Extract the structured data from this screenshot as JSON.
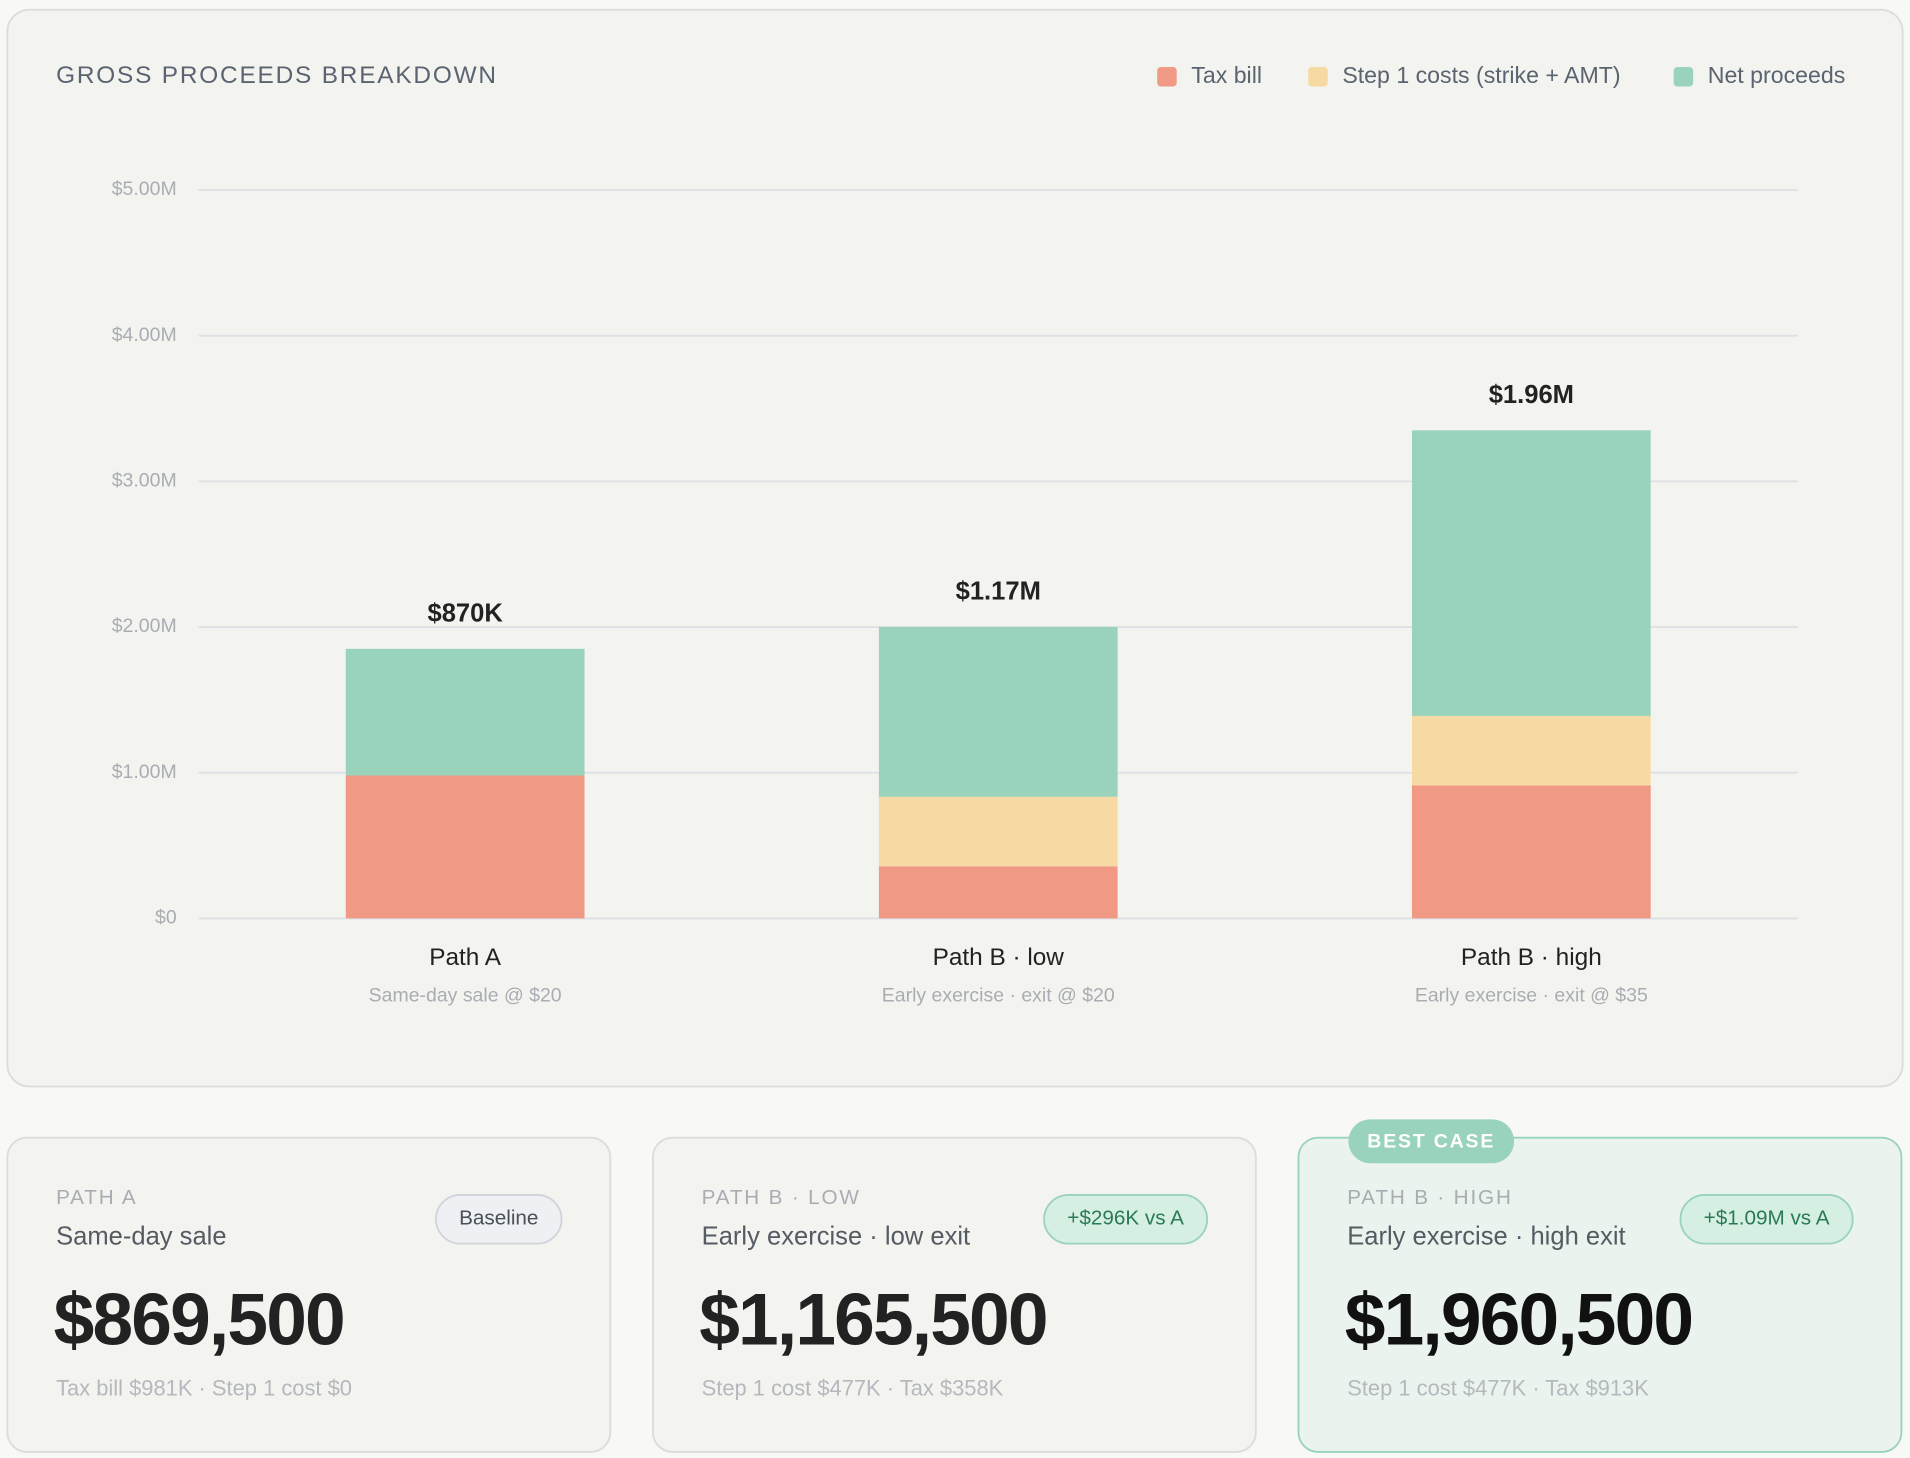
{
  "chart_data": {
    "type": "bar",
    "stacked": true,
    "title": "GROSS PROCEEDS BREAKDOWN",
    "categories": [
      "Path A",
      "Path B · low",
      "Path B · high"
    ],
    "subtitles": [
      "Same-day sale @ $20",
      "Early exercise · exit @ $20",
      "Early exercise · exit @ $35"
    ],
    "series": [
      {
        "name": "Tax bill",
        "color": "#f09a86",
        "values": [
          981000,
          358000,
          913000
        ]
      },
      {
        "name": "Step 1 costs (strike + AMT)",
        "color": "#f7d9a4",
        "values": [
          0,
          477000,
          477000
        ]
      },
      {
        "name": "Net proceeds",
        "color": "#9ad3bb",
        "values": [
          869500,
          1165500,
          1960500
        ],
        "value_labels": [
          "$870K",
          "$1.17M",
          "$1.96M"
        ]
      }
    ],
    "ylim": [
      0,
      5000000
    ],
    "yticks": [
      {
        "value": 0,
        "label": "$0"
      },
      {
        "value": 1000000,
        "label": "$1.00M"
      },
      {
        "value": 2000000,
        "label": "$2.00M"
      },
      {
        "value": 3000000,
        "label": "$3.00M"
      },
      {
        "value": 4000000,
        "label": "$4.00M"
      },
      {
        "value": 5000000,
        "label": "$5.00M"
      }
    ],
    "grid": true,
    "legend": "top-right"
  },
  "cards": [
    {
      "label": "PATH A",
      "title": "Same-day sale",
      "badge": "Baseline",
      "value": "$869,500",
      "detail": "Tax bill $981K · Step 1 cost $0"
    },
    {
      "label": "PATH B · LOW",
      "title": "Early exercise · low exit",
      "badge": "+$296K vs A",
      "value": "$1,165,500",
      "detail": "Step 1 cost $477K · Tax $358K"
    },
    {
      "label": "PATH B · HIGH",
      "title": "Early exercise · high exit",
      "badge": "+$1.09M vs A",
      "value": "$1,960,500",
      "detail": "Step 1 cost $477K · Tax $913K",
      "tag": "BEST CASE"
    }
  ]
}
